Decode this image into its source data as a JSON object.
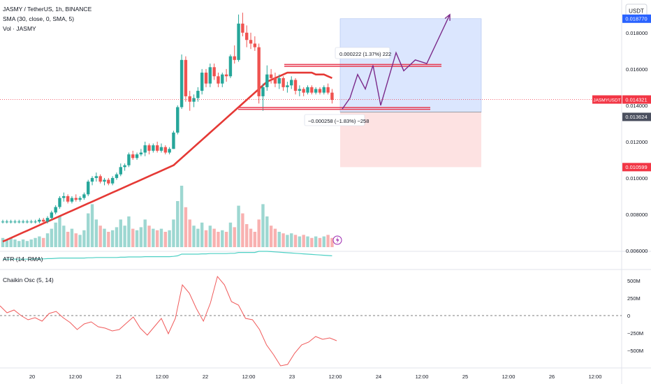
{
  "header": {
    "symbol_line": "JASMY / TetherUS, 1h, BINANCE",
    "sma_line": "SMA (30, close, 0, SMA, 5)",
    "vol_line": "Vol · JASMY"
  },
  "currency_button": "USDT",
  "colors": {
    "up": "#26a69a",
    "down": "#ef5350",
    "sma": "#e53935",
    "atr": "#4dd0c4",
    "chaikin": "#f05a5a",
    "target_zone": "#dbe6fe",
    "stop_zone": "#fde2e2",
    "path": "#7b2a8a",
    "level": "#e8384f",
    "price_tag": "#f23645",
    "blue_tag": "#2962ff",
    "grey_tag": "#4a4f5e"
  },
  "price_axis": {
    "ticks": [
      "0.018000",
      "0.016000",
      "0.014000",
      "0.012000",
      "0.010000",
      "0.008000",
      "0.006000"
    ],
    "tick_values": [
      0.018,
      0.016,
      0.014,
      0.012,
      0.01,
      0.008,
      0.006
    ],
    "tag_target": "0.018770",
    "tag_current_symbol": "JASMYUSDT",
    "tag_current": "0.014321",
    "tag_entry": "0.013624",
    "tag_stop": "0.010599"
  },
  "position_labels": {
    "target": "0.000222 (1.37%) 222",
    "stop": "−0.000258 (−1.83%) −258"
  },
  "atr_label": "ATR (14, RMA)",
  "chaikin": {
    "label": "Chaikin Osc (5, 14)",
    "ticks": [
      "500M",
      "250M",
      "0",
      "−250M",
      "−500M"
    ],
    "tick_values": [
      500,
      250,
      0,
      -250,
      -500
    ],
    "values": [
      140,
      40,
      80,
      0,
      -60,
      -30,
      -80,
      30,
      60,
      -30,
      -100,
      -200,
      -120,
      -90,
      -160,
      -180,
      -220,
      -200,
      -110,
      -20,
      -180,
      -280,
      -160,
      -40,
      -260,
      -40,
      440,
      320,
      100,
      -80,
      180,
      560,
      440,
      200,
      150,
      -40,
      -60,
      -200,
      -420,
      -560,
      -720,
      -700,
      -540,
      -420,
      -380,
      -300,
      -340,
      -320,
      -360
    ]
  },
  "time_axis": {
    "labels": [
      "20",
      "12:00",
      "21",
      "12:00",
      "22",
      "12:00",
      "23",
      "12:00",
      "24",
      "12:00",
      "25",
      "12:00",
      "26",
      "12:00"
    ]
  },
  "chart_data": {
    "type": "candlestick",
    "ylim": [
      0.0055,
      0.0198
    ],
    "candles": [
      [
        0.0076,
        0.0077,
        0.0075,
        0.0076
      ],
      [
        0.0076,
        0.0077,
        0.0075,
        0.0076
      ],
      [
        0.0076,
        0.0077,
        0.0075,
        0.0076
      ],
      [
        0.0076,
        0.0077,
        0.0075,
        0.0076
      ],
      [
        0.0076,
        0.0077,
        0.0075,
        0.0076
      ],
      [
        0.0076,
        0.0077,
        0.0075,
        0.0076
      ],
      [
        0.0076,
        0.0077,
        0.0075,
        0.0076
      ],
      [
        0.0076,
        0.0077,
        0.0075,
        0.0076
      ],
      [
        0.0076,
        0.0077,
        0.0075,
        0.0076
      ],
      [
        0.0076,
        0.0078,
        0.0075,
        0.0077
      ],
      [
        0.0077,
        0.0078,
        0.0075,
        0.0076
      ],
      [
        0.0076,
        0.0079,
        0.0075,
        0.0078
      ],
      [
        0.0078,
        0.0082,
        0.0077,
        0.0081
      ],
      [
        0.0081,
        0.0085,
        0.008,
        0.0084
      ],
      [
        0.0084,
        0.009,
        0.0083,
        0.0089
      ],
      [
        0.0089,
        0.0092,
        0.0087,
        0.009
      ],
      [
        0.009,
        0.0091,
        0.0086,
        0.0087
      ],
      [
        0.0087,
        0.009,
        0.0086,
        0.0089
      ],
      [
        0.0089,
        0.0091,
        0.0087,
        0.0088
      ],
      [
        0.0088,
        0.009,
        0.0087,
        0.0089
      ],
      [
        0.0089,
        0.0092,
        0.0088,
        0.0091
      ],
      [
        0.0091,
        0.0099,
        0.009,
        0.0098
      ],
      [
        0.0098,
        0.0101,
        0.0096,
        0.01
      ],
      [
        0.01,
        0.0103,
        0.0098,
        0.0101
      ],
      [
        0.0101,
        0.0102,
        0.0097,
        0.0098
      ],
      [
        0.0098,
        0.01,
        0.0096,
        0.0099
      ],
      [
        0.0099,
        0.01,
        0.0096,
        0.0097
      ],
      [
        0.0097,
        0.0101,
        0.0096,
        0.01
      ],
      [
        0.01,
        0.0103,
        0.0099,
        0.0102
      ],
      [
        0.0102,
        0.0108,
        0.0101,
        0.0106
      ],
      [
        0.0106,
        0.0108,
        0.0104,
        0.0107
      ],
      [
        0.0107,
        0.0114,
        0.0106,
        0.0113
      ],
      [
        0.0113,
        0.0115,
        0.011,
        0.0111
      ],
      [
        0.0111,
        0.0114,
        0.011,
        0.0113
      ],
      [
        0.0113,
        0.0116,
        0.0112,
        0.0114
      ],
      [
        0.0114,
        0.012,
        0.0112,
        0.0118
      ],
      [
        0.0118,
        0.0119,
        0.0113,
        0.0115
      ],
      [
        0.0115,
        0.0119,
        0.0114,
        0.0118
      ],
      [
        0.0118,
        0.012,
        0.0114,
        0.0115
      ],
      [
        0.0115,
        0.0119,
        0.0114,
        0.0117
      ],
      [
        0.0117,
        0.0118,
        0.0113,
        0.0114
      ],
      [
        0.0114,
        0.0117,
        0.0113,
        0.0116
      ],
      [
        0.0116,
        0.0126,
        0.0116,
        0.0125
      ],
      [
        0.0125,
        0.014,
        0.0124,
        0.0139
      ],
      [
        0.0139,
        0.0168,
        0.0138,
        0.0165
      ],
      [
        0.0165,
        0.0167,
        0.0142,
        0.0145
      ],
      [
        0.0145,
        0.0148,
        0.0137,
        0.0142
      ],
      [
        0.0142,
        0.0146,
        0.0139,
        0.0144
      ],
      [
        0.0144,
        0.015,
        0.0142,
        0.0148
      ],
      [
        0.0148,
        0.016,
        0.0146,
        0.0158
      ],
      [
        0.0158,
        0.016,
        0.015,
        0.0152
      ],
      [
        0.0152,
        0.0163,
        0.015,
        0.0161
      ],
      [
        0.0161,
        0.0163,
        0.0154,
        0.0156
      ],
      [
        0.0156,
        0.0158,
        0.015,
        0.0152
      ],
      [
        0.0152,
        0.0158,
        0.015,
        0.0157
      ],
      [
        0.0157,
        0.016,
        0.0153,
        0.0156
      ],
      [
        0.0156,
        0.0168,
        0.0155,
        0.0167
      ],
      [
        0.0167,
        0.0173,
        0.0163,
        0.0165
      ],
      [
        0.0165,
        0.019,
        0.0164,
        0.0185
      ],
      [
        0.0185,
        0.0191,
        0.0178,
        0.018
      ],
      [
        0.018,
        0.0184,
        0.0172,
        0.0176
      ],
      [
        0.0176,
        0.018,
        0.0171,
        0.0174
      ],
      [
        0.0174,
        0.0178,
        0.017,
        0.0172
      ],
      [
        0.0172,
        0.0174,
        0.0141,
        0.0145
      ],
      [
        0.0145,
        0.0152,
        0.0137,
        0.015
      ],
      [
        0.015,
        0.0162,
        0.0148,
        0.0157
      ],
      [
        0.0157,
        0.016,
        0.0152,
        0.0155
      ],
      [
        0.0155,
        0.0158,
        0.015,
        0.0152
      ],
      [
        0.0152,
        0.0157,
        0.0149,
        0.0155
      ],
      [
        0.0155,
        0.0156,
        0.0148,
        0.015
      ],
      [
        0.015,
        0.0153,
        0.0147,
        0.0151
      ],
      [
        0.0151,
        0.0156,
        0.0149,
        0.0154
      ],
      [
        0.0154,
        0.0155,
        0.0146,
        0.0148
      ],
      [
        0.0148,
        0.0151,
        0.0145,
        0.0149
      ],
      [
        0.0149,
        0.015,
        0.0145,
        0.0147
      ],
      [
        0.0147,
        0.0151,
        0.0146,
        0.015
      ],
      [
        0.015,
        0.0151,
        0.0146,
        0.0147
      ],
      [
        0.0147,
        0.015,
        0.0146,
        0.0149
      ],
      [
        0.0149,
        0.015,
        0.0146,
        0.0147
      ],
      [
        0.0147,
        0.0151,
        0.0146,
        0.015
      ],
      [
        0.015,
        0.0152,
        0.0146,
        0.0147
      ],
      [
        0.0147,
        0.0149,
        0.0141,
        0.0143
      ]
    ],
    "volumes": [
      6,
      5,
      6,
      5,
      4,
      5,
      4,
      5,
      6,
      7,
      6,
      9,
      12,
      16,
      20,
      14,
      10,
      12,
      9,
      8,
      11,
      22,
      28,
      18,
      14,
      12,
      10,
      11,
      13,
      18,
      14,
      20,
      12,
      11,
      13,
      18,
      14,
      12,
      11,
      12,
      10,
      11,
      18,
      30,
      40,
      26,
      18,
      14,
      12,
      16,
      11,
      14,
      12,
      10,
      11,
      10,
      16,
      13,
      27,
      22,
      15,
      12,
      10,
      18,
      28,
      20,
      14,
      12,
      10,
      9,
      8,
      9,
      8,
      7,
      8,
      7,
      6,
      7,
      6,
      7,
      8,
      6
    ],
    "sma": [
      0.0065,
      0.0066,
      0.0067,
      0.0068,
      0.0069,
      0.007,
      0.0071,
      0.0072,
      0.0073,
      0.0074,
      0.0075,
      0.0076,
      0.0077,
      0.0078,
      0.0079,
      0.008,
      0.0081,
      0.0082,
      0.0083,
      0.0084,
      0.0085,
      0.0086,
      0.0087,
      0.0088,
      0.0089,
      0.009,
      0.0091,
      0.0092,
      0.0093,
      0.0094,
      0.0095,
      0.0096,
      0.0097,
      0.0098,
      0.0099,
      0.01,
      0.0101,
      0.0102,
      0.0103,
      0.0104,
      0.0105,
      0.0106,
      0.0107,
      0.0109,
      0.0111,
      0.0113,
      0.0115,
      0.0117,
      0.0119,
      0.0121,
      0.0123,
      0.0125,
      0.0127,
      0.0129,
      0.0131,
      0.0133,
      0.0135,
      0.0137,
      0.0139,
      0.0141,
      0.0143,
      0.0145,
      0.0147,
      0.0149,
      0.0151,
      0.0153,
      0.0154,
      0.0155,
      0.0156,
      0.0157,
      0.0158,
      0.0158,
      0.0158,
      0.0158,
      0.0158,
      0.0158,
      0.0158,
      0.0157,
      0.0157,
      0.0157,
      0.0156,
      0.0155
    ],
    "atr": [
      0.62,
      0.62,
      0.62,
      0.62,
      0.62,
      0.62,
      0.62,
      0.62,
      0.63,
      0.63,
      0.63,
      0.64,
      0.64,
      0.65,
      0.66,
      0.66,
      0.66,
      0.66,
      0.66,
      0.66,
      0.66,
      0.67,
      0.67,
      0.68,
      0.68,
      0.68,
      0.68,
      0.68,
      0.68,
      0.69,
      0.69,
      0.7,
      0.7,
      0.7,
      0.7,
      0.71,
      0.71,
      0.71,
      0.71,
      0.71,
      0.71,
      0.71,
      0.72,
      0.74,
      0.8,
      0.8,
      0.8,
      0.8,
      0.8,
      0.81,
      0.81,
      0.82,
      0.82,
      0.82,
      0.82,
      0.82,
      0.83,
      0.83,
      0.86,
      0.86,
      0.86,
      0.86,
      0.86,
      0.9,
      0.9,
      0.9,
      0.89,
      0.88,
      0.87,
      0.86,
      0.85,
      0.84,
      0.83,
      0.82,
      0.81,
      0.8,
      0.79,
      0.78,
      0.77,
      0.76,
      0.75,
      0.74
    ],
    "levels": {
      "resistance": [
        0.01625,
        0.01615
      ],
      "support": [
        0.01388,
        0.01378
      ],
      "target": 0.01877,
      "entry": 0.013624,
      "stop": 0.010599,
      "current": 0.014321
    },
    "projection_path": [
      [
        0,
        0.0138
      ],
      [
        2,
        0.0144
      ],
      [
        4,
        0.0157
      ],
      [
        6,
        0.0149
      ],
      [
        8,
        0.0162
      ],
      [
        10,
        0.014
      ],
      [
        14,
        0.0169
      ],
      [
        16,
        0.0159
      ],
      [
        19,
        0.0165
      ],
      [
        22,
        0.0163
      ],
      [
        28,
        0.019
      ]
    ]
  }
}
